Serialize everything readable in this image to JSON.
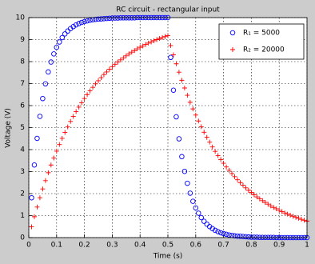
{
  "chart_data": {
    "type": "scatter",
    "title": "RC circuit - rectangular input",
    "x_label": "Time (s)",
    "y_label": "Voltage (V)",
    "x": [
      0.01,
      0.02,
      0.03,
      0.04,
      0.05,
      0.06,
      0.07,
      0.08,
      0.09,
      0.1,
      0.11,
      0.12,
      0.13,
      0.14,
      0.15,
      0.16,
      0.17,
      0.18,
      0.19,
      0.2,
      0.21,
      0.22,
      0.23,
      0.24,
      0.25,
      0.26,
      0.27,
      0.28,
      0.29,
      0.3,
      0.31,
      0.32,
      0.33,
      0.34,
      0.35,
      0.36,
      0.37,
      0.38,
      0.39,
      0.4,
      0.41,
      0.42,
      0.43,
      0.44,
      0.45,
      0.46,
      0.47,
      0.48,
      0.49,
      0.5,
      0.51,
      0.52,
      0.53,
      0.54,
      0.55,
      0.56,
      0.57,
      0.58,
      0.59,
      0.6,
      0.61,
      0.62,
      0.63,
      0.64,
      0.65,
      0.66,
      0.67,
      0.68,
      0.69,
      0.7,
      0.71,
      0.72,
      0.73,
      0.74,
      0.75,
      0.76,
      0.77,
      0.78,
      0.79,
      0.8,
      0.81,
      0.82,
      0.83,
      0.84,
      0.85,
      0.86,
      0.87,
      0.88,
      0.89,
      0.9,
      0.91,
      0.92,
      0.93,
      0.94,
      0.95,
      0.96,
      0.97,
      0.98,
      0.99,
      1
    ],
    "series": [
      {
        "name": "R₁ = 5000",
        "color": "#0000ff",
        "marker": "circle",
        "values": [
          1.81,
          3.3,
          4.51,
          5.51,
          6.32,
          6.99,
          7.53,
          7.98,
          8.35,
          8.65,
          8.89,
          9.09,
          9.26,
          9.39,
          9.5,
          9.59,
          9.67,
          9.73,
          9.78,
          9.82,
          9.85,
          9.88,
          9.9,
          9.92,
          9.93,
          9.94,
          9.95,
          9.96,
          9.97,
          9.98,
          9.98,
          9.98,
          9.99,
          9.99,
          9.99,
          9.99,
          9.99,
          9.99,
          10,
          10,
          10,
          10,
          10,
          10,
          10,
          10,
          10,
          10,
          10,
          10,
          8.19,
          6.7,
          5.49,
          4.49,
          3.68,
          3.01,
          2.47,
          2.02,
          1.65,
          1.35,
          1.11,
          0.91,
          0.74,
          0.61,
          0.5,
          0.41,
          0.33,
          0.27,
          0.22,
          0.18,
          0.15,
          0.12,
          0.1,
          0.08,
          0.07,
          0.06,
          0.05,
          0.04,
          0.03,
          0.02,
          0.02,
          0.02,
          0.01,
          0.01,
          0.01,
          0.01,
          0.01,
          0.01,
          0,
          0,
          0,
          0,
          0,
          0,
          0,
          0,
          0,
          0,
          0,
          0
        ]
      },
      {
        "name": "R₂ = 20000",
        "color": "#ff0000",
        "marker": "plus",
        "values": [
          0.49,
          0.95,
          1.39,
          1.81,
          2.21,
          2.59,
          2.95,
          3.3,
          3.62,
          3.93,
          4.23,
          4.51,
          4.78,
          5.03,
          5.28,
          5.51,
          5.73,
          5.93,
          6.13,
          6.32,
          6.5,
          6.67,
          6.83,
          6.99,
          7.13,
          7.27,
          7.41,
          7.53,
          7.65,
          7.77,
          7.88,
          7.98,
          8.08,
          8.17,
          8.26,
          8.35,
          8.43,
          8.5,
          8.58,
          8.65,
          8.71,
          8.78,
          8.84,
          8.89,
          8.95,
          9,
          9.05,
          9.09,
          9.14,
          9.18,
          8.73,
          8.31,
          7.9,
          7.52,
          7.15,
          6.8,
          6.47,
          6.15,
          5.85,
          5.57,
          5.3,
          5.04,
          4.79,
          4.56,
          4.34,
          4.12,
          3.92,
          3.73,
          3.55,
          3.38,
          3.21,
          3.06,
          2.91,
          2.77,
          2.63,
          2.5,
          2.38,
          2.26,
          2.15,
          2.05,
          1.95,
          1.85,
          1.76,
          1.68,
          1.6,
          1.52,
          1.44,
          1.37,
          1.31,
          1.24,
          1.18,
          1.12,
          1.07,
          1.02,
          0.97,
          0.92,
          0.88,
          0.83,
          0.79,
          0.75
        ]
      }
    ],
    "xlim": [
      0,
      1
    ],
    "xticks": [
      0,
      0.1,
      0.2,
      0.3,
      0.4,
      0.5,
      0.6,
      0.7,
      0.8,
      0.9,
      1
    ],
    "ylim": [
      0,
      10
    ],
    "yticks": [
      0,
      1,
      2,
      3,
      4,
      5,
      6,
      7,
      8,
      9,
      10
    ],
    "grid": true,
    "legend": "northeast"
  }
}
